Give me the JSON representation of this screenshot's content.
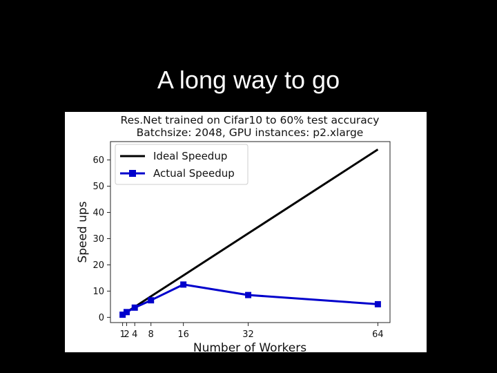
{
  "slide": {
    "title": "A long way to go"
  },
  "chart_data": {
    "type": "line",
    "title": "Res.Net trained on Cifar10 to 60% test accuracy",
    "subtitle": "Batchsize: 2048, GPU instances: p2.xlarge",
    "xlabel": "Number of Workers",
    "ylabel": "Speed ups",
    "xticks": [
      1,
      2,
      4,
      8,
      16,
      32,
      64
    ],
    "yticks": [
      0,
      10,
      20,
      30,
      40,
      50,
      60
    ],
    "xlim": [
      -2,
      67
    ],
    "ylim": [
      -2,
      67
    ],
    "grid": false,
    "legend": "top-left",
    "series": [
      {
        "name": "Ideal Speedup",
        "color": "#000000",
        "marker": "none",
        "x": [
          1,
          2,
          4,
          8,
          16,
          32,
          64
        ],
        "y": [
          1,
          2,
          4,
          8,
          16,
          32,
          64
        ]
      },
      {
        "name": "Actual Speedup",
        "color": "#0000cc",
        "marker": "square",
        "x": [
          1,
          2,
          4,
          8,
          16,
          32,
          64
        ],
        "y": [
          1,
          2,
          3.7,
          6.5,
          12.5,
          8.5,
          5
        ]
      }
    ]
  }
}
